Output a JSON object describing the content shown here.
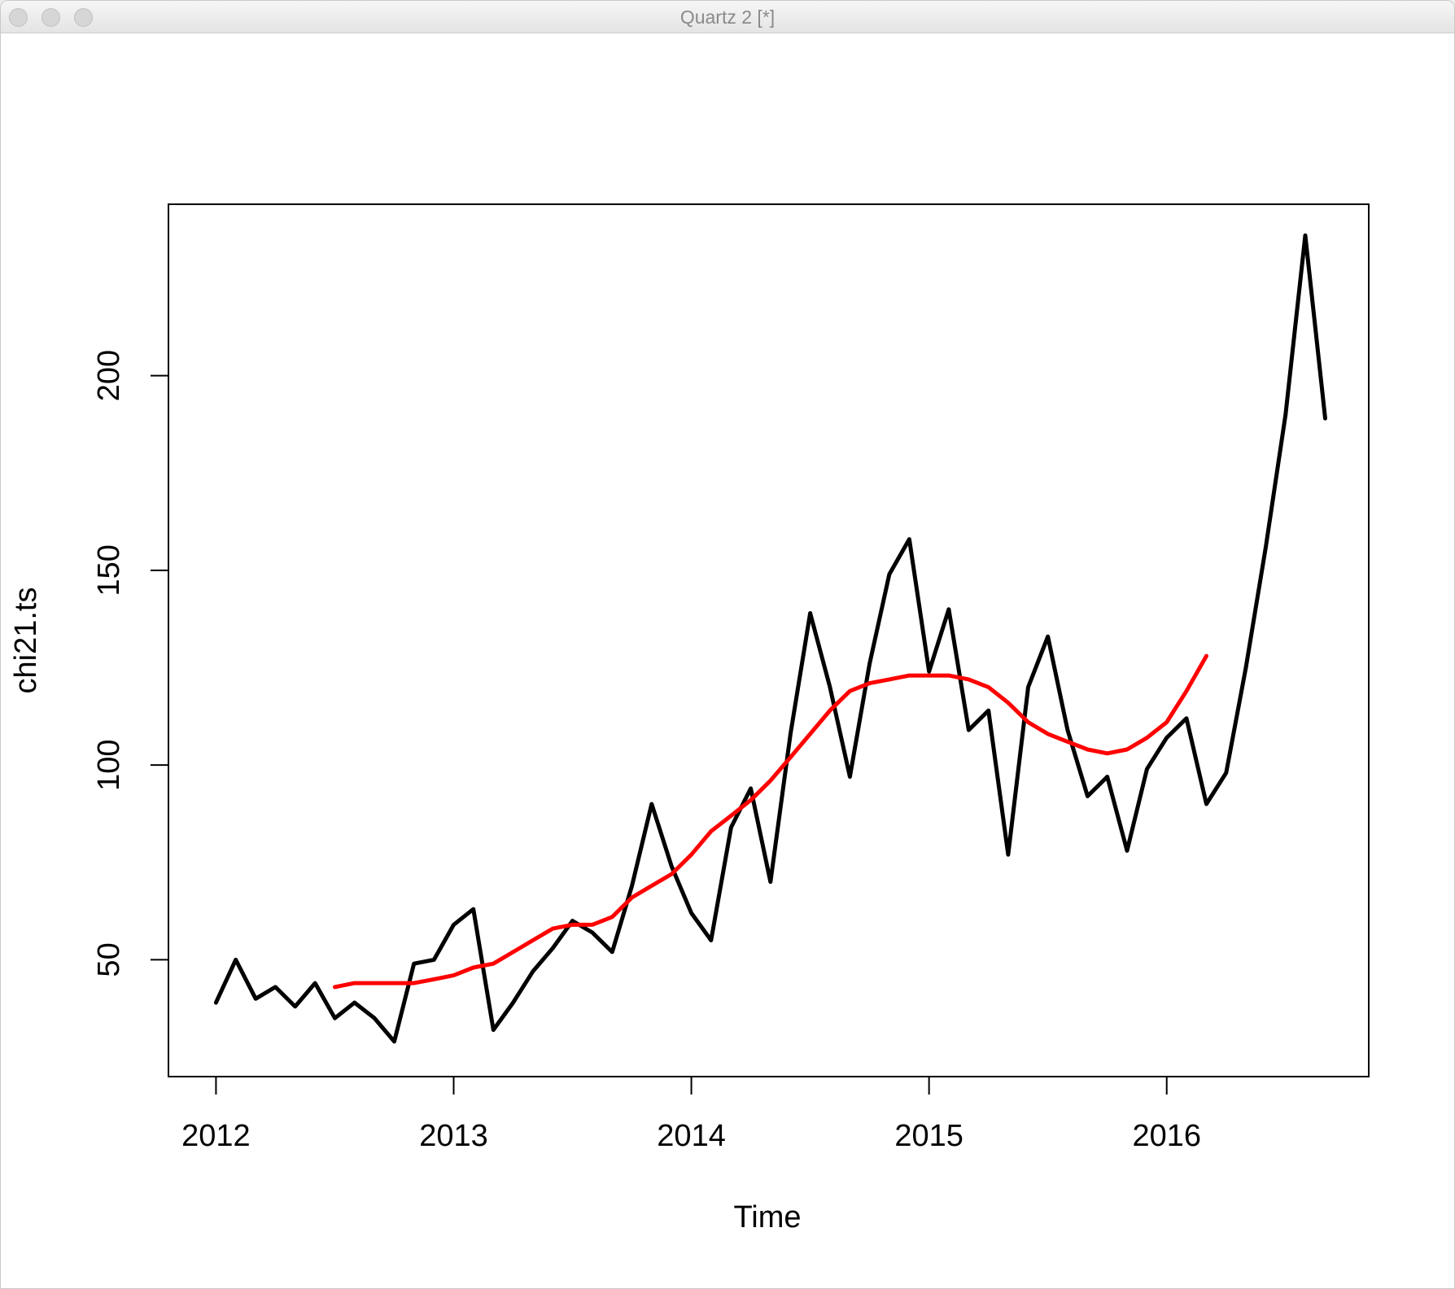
{
  "window": {
    "title": "Quartz 2 [*]"
  },
  "chart_data": {
    "type": "line",
    "title": "",
    "xlabel": "Time",
    "ylabel": "chi21.ts",
    "xlim": [
      2011.8,
      2016.85
    ],
    "ylim": [
      20,
      244
    ],
    "xticks": [
      2012,
      2013,
      2014,
      2015,
      2016
    ],
    "yticks": [
      50,
      100,
      150,
      200
    ],
    "grid": false,
    "series": [
      {
        "color": "#000000",
        "x": [
          2012.0,
          2012.083,
          2012.167,
          2012.25,
          2012.333,
          2012.417,
          2012.5,
          2012.583,
          2012.667,
          2012.75,
          2012.833,
          2012.917,
          2013.0,
          2013.083,
          2013.167,
          2013.25,
          2013.333,
          2013.417,
          2013.5,
          2013.583,
          2013.667,
          2013.75,
          2013.833,
          2013.917,
          2014.0,
          2014.083,
          2014.167,
          2014.25,
          2014.333,
          2014.417,
          2014.5,
          2014.583,
          2014.667,
          2014.75,
          2014.833,
          2014.917,
          2015.0,
          2015.083,
          2015.167,
          2015.25,
          2015.333,
          2015.417,
          2015.5,
          2015.583,
          2015.667,
          2015.75,
          2015.833,
          2015.917,
          2016.0,
          2016.083,
          2016.167,
          2016.25,
          2016.333,
          2016.417,
          2016.5,
          2016.583,
          2016.667
        ],
        "values": [
          39,
          50,
          40,
          43,
          38,
          44,
          35,
          39,
          35,
          29,
          49,
          50,
          59,
          63,
          32,
          39,
          47,
          53,
          60,
          57,
          52,
          69,
          90,
          74,
          62,
          55,
          84,
          94,
          70,
          108,
          139,
          120,
          97,
          126,
          149,
          158,
          124,
          140,
          109,
          114,
          77,
          120,
          133,
          109,
          92,
          97,
          78,
          99,
          107,
          112,
          90,
          98,
          125,
          156,
          190,
          236,
          189
        ]
      },
      {
        "color": "#ff0000",
        "x": [
          2012.5,
          2012.583,
          2012.667,
          2012.75,
          2012.833,
          2012.917,
          2013.0,
          2013.083,
          2013.167,
          2013.25,
          2013.333,
          2013.417,
          2013.5,
          2013.583,
          2013.667,
          2013.75,
          2013.833,
          2013.917,
          2014.0,
          2014.083,
          2014.167,
          2014.25,
          2014.333,
          2014.417,
          2014.5,
          2014.583,
          2014.667,
          2014.75,
          2014.833,
          2014.917,
          2015.0,
          2015.083,
          2015.167,
          2015.25,
          2015.333,
          2015.417,
          2015.5,
          2015.583,
          2015.667,
          2015.75,
          2015.833,
          2015.917,
          2016.0,
          2016.083,
          2016.167
        ],
        "values": [
          43,
          44,
          44,
          44,
          44,
          45,
          46,
          48,
          49,
          52,
          55,
          58,
          59,
          59,
          61,
          66,
          69,
          72,
          77,
          83,
          87,
          91,
          96,
          102,
          108,
          114,
          119,
          121,
          122,
          123,
          123,
          123,
          122,
          120,
          116,
          111,
          108,
          106,
          104,
          103,
          104,
          107,
          111,
          119,
          128
        ]
      }
    ]
  }
}
